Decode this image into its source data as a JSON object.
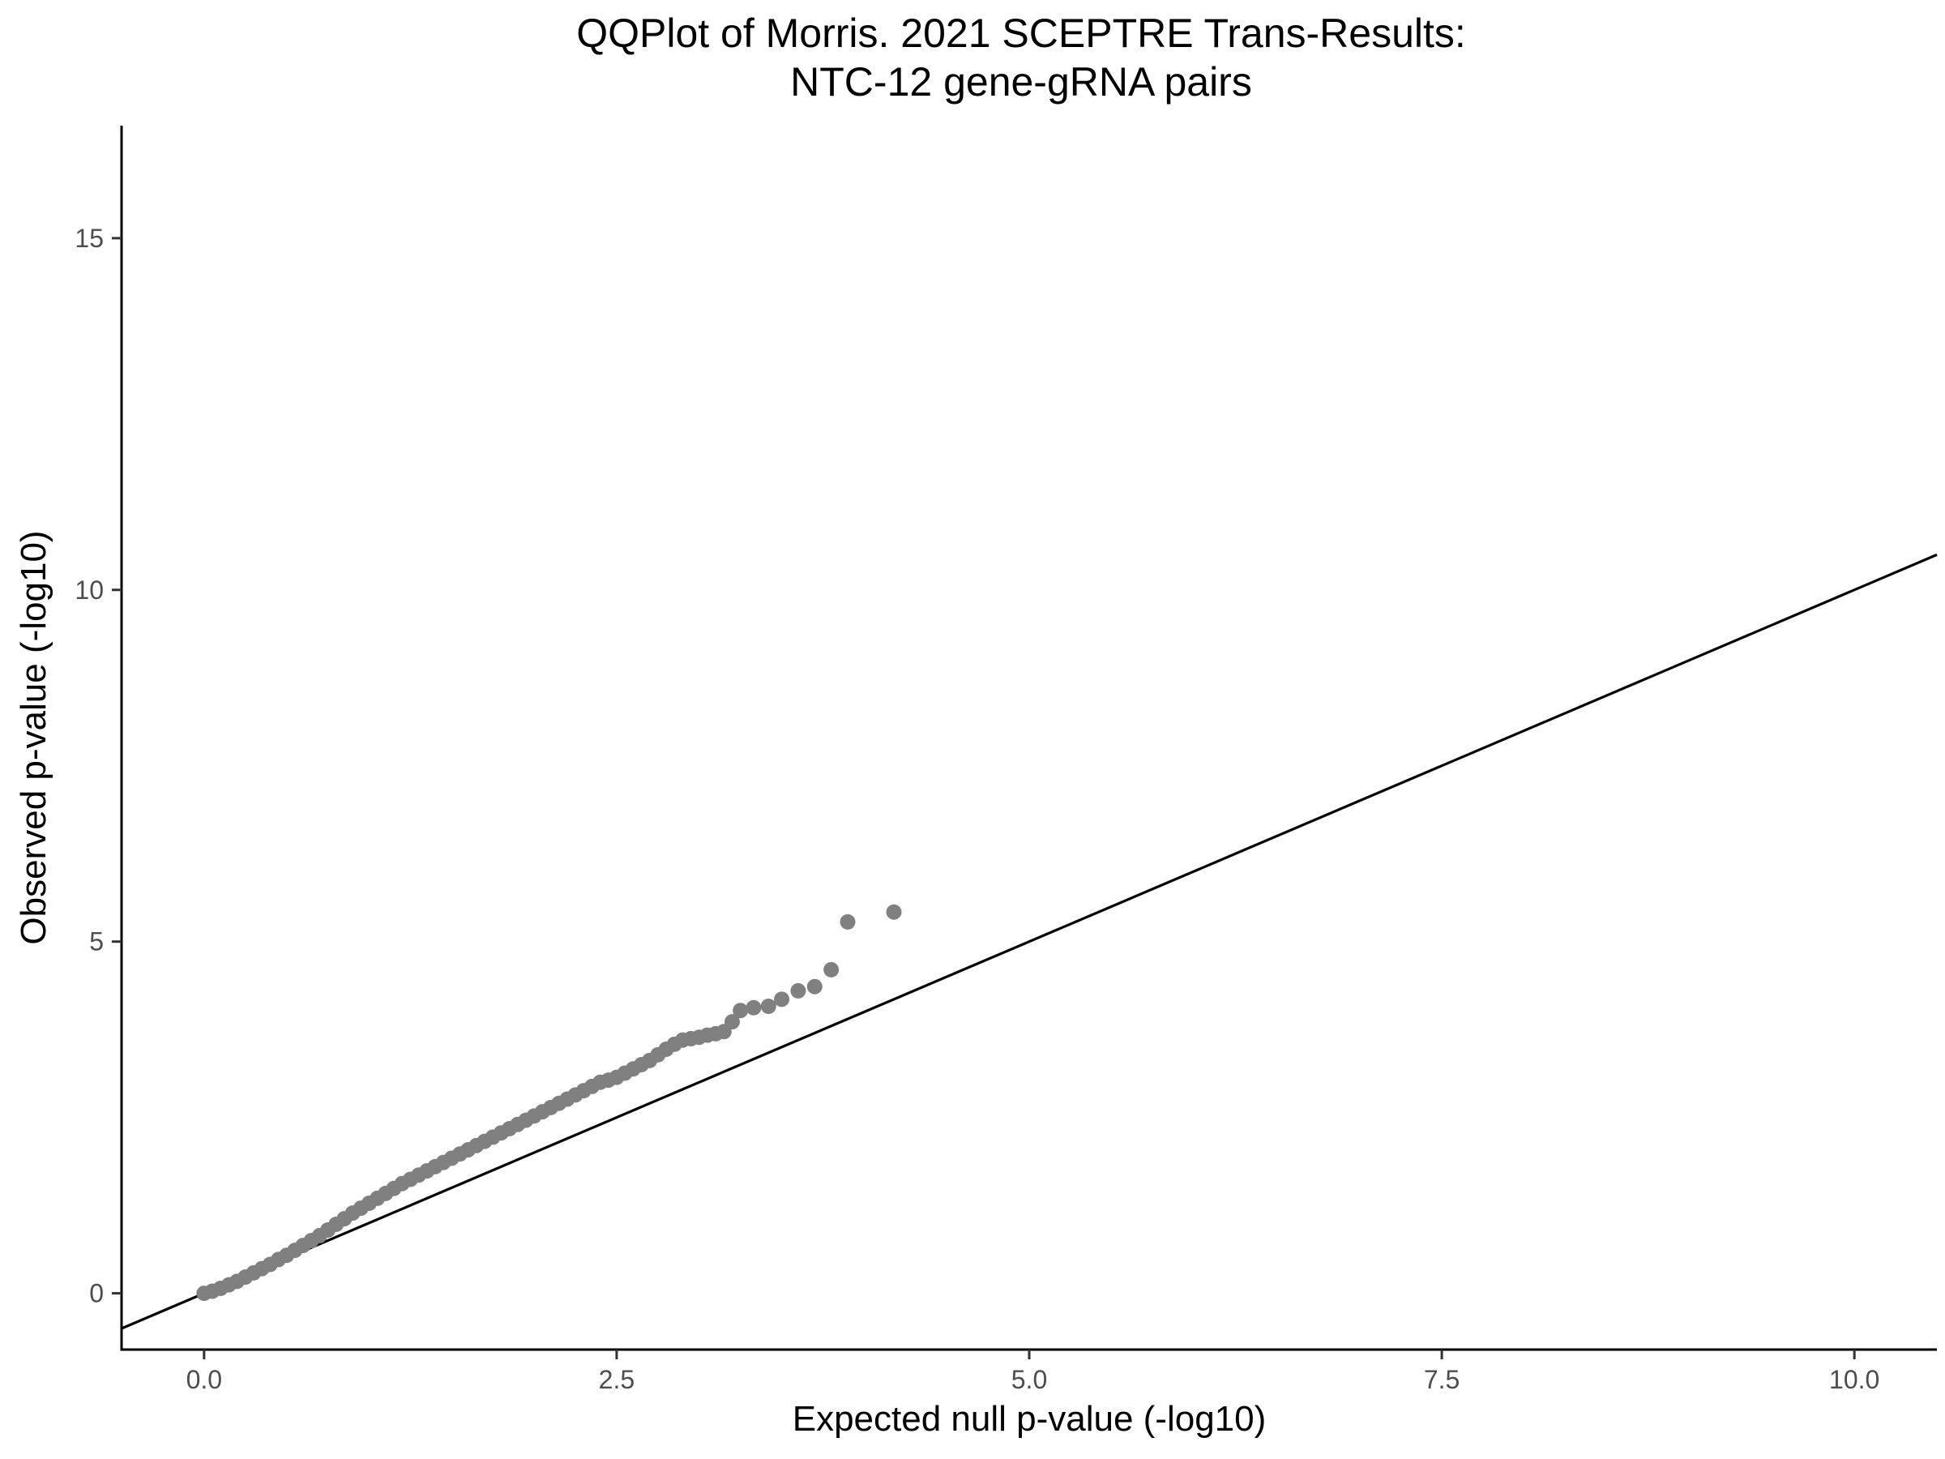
{
  "chart_data": {
    "type": "scatter",
    "title_lines": [
      "QQPlot of Morris. 2021 SCEPTRE Trans-Results:",
      "NTC-12 gene-gRNA pairs"
    ],
    "xlabel": "Expected null p-value (-log10)",
    "ylabel": "Observed p-value (-log10)",
    "xlim": [
      -0.5,
      10.5
    ],
    "ylim": [
      -0.8,
      16.6
    ],
    "x_ticks": [
      0,
      2.5,
      5,
      7.5,
      10
    ],
    "x_tick_labels": [
      "0.0",
      "2.5",
      "5.0",
      "7.5",
      "10.0"
    ],
    "y_ticks": [
      0,
      5,
      10,
      15
    ],
    "y_tick_labels": [
      "0",
      "5",
      "10",
      "15"
    ],
    "grid": false,
    "reference_line": {
      "slope": 1,
      "intercept": 0,
      "color": "#000000"
    },
    "point_color": "#808080",
    "points": [
      [
        0.0,
        0.0
      ],
      [
        0.05,
        0.03
      ],
      [
        0.1,
        0.07
      ],
      [
        0.15,
        0.12
      ],
      [
        0.2,
        0.17
      ],
      [
        0.25,
        0.23
      ],
      [
        0.3,
        0.29
      ],
      [
        0.35,
        0.35
      ],
      [
        0.4,
        0.41
      ],
      [
        0.45,
        0.48
      ],
      [
        0.5,
        0.54
      ],
      [
        0.55,
        0.61
      ],
      [
        0.6,
        0.68
      ],
      [
        0.65,
        0.75
      ],
      [
        0.7,
        0.82
      ],
      [
        0.75,
        0.9
      ],
      [
        0.8,
        0.98
      ],
      [
        0.85,
        1.06
      ],
      [
        0.9,
        1.14
      ],
      [
        0.95,
        1.21
      ],
      [
        1.0,
        1.28
      ],
      [
        1.05,
        1.35
      ],
      [
        1.1,
        1.42
      ],
      [
        1.15,
        1.49
      ],
      [
        1.2,
        1.56
      ],
      [
        1.25,
        1.62
      ],
      [
        1.3,
        1.68
      ],
      [
        1.35,
        1.74
      ],
      [
        1.4,
        1.8
      ],
      [
        1.45,
        1.86
      ],
      [
        1.5,
        1.92
      ],
      [
        1.55,
        1.98
      ],
      [
        1.6,
        2.04
      ],
      [
        1.65,
        2.1
      ],
      [
        1.7,
        2.16
      ],
      [
        1.75,
        2.22
      ],
      [
        1.8,
        2.28
      ],
      [
        1.85,
        2.34
      ],
      [
        1.9,
        2.4
      ],
      [
        1.95,
        2.46
      ],
      [
        2.0,
        2.52
      ],
      [
        2.05,
        2.58
      ],
      [
        2.1,
        2.64
      ],
      [
        2.15,
        2.7
      ],
      [
        2.2,
        2.76
      ],
      [
        2.25,
        2.82
      ],
      [
        2.3,
        2.88
      ],
      [
        2.35,
        2.94
      ],
      [
        2.4,
        3.0
      ],
      [
        2.45,
        3.03
      ],
      [
        2.5,
        3.07
      ],
      [
        2.55,
        3.13
      ],
      [
        2.6,
        3.19
      ],
      [
        2.65,
        3.25
      ],
      [
        2.7,
        3.31
      ],
      [
        2.75,
        3.39
      ],
      [
        2.8,
        3.47
      ],
      [
        2.85,
        3.54
      ],
      [
        2.9,
        3.6
      ],
      [
        2.95,
        3.62
      ],
      [
        3.0,
        3.64
      ],
      [
        3.05,
        3.67
      ],
      [
        3.1,
        3.69
      ],
      [
        3.15,
        3.72
      ],
      [
        3.2,
        3.86
      ],
      [
        3.25,
        4.02
      ],
      [
        3.33,
        4.06
      ],
      [
        3.42,
        4.08
      ],
      [
        3.5,
        4.18
      ],
      [
        3.6,
        4.3
      ],
      [
        3.7,
        4.36
      ],
      [
        3.8,
        4.6
      ],
      [
        3.9,
        5.28
      ],
      [
        4.18,
        5.42
      ]
    ]
  }
}
